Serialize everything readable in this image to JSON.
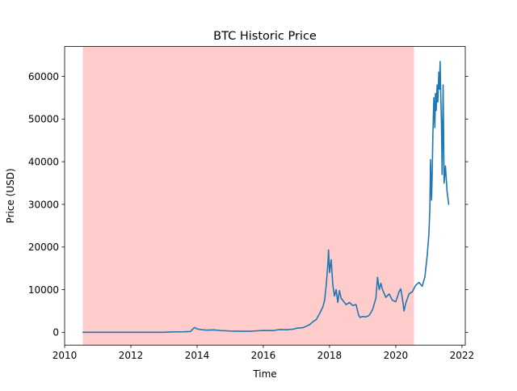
{
  "chart_data": {
    "type": "line",
    "title": "BTC Historic Price",
    "xlabel": "Time",
    "ylabel": "Price (USD)",
    "xlim": [
      2010.0,
      2022.1
    ],
    "ylim": [
      -3000,
      67000
    ],
    "x_ticks": [
      2010,
      2012,
      2014,
      2016,
      2018,
      2020,
      2022
    ],
    "x_tick_labels": [
      "2010",
      "2012",
      "2014",
      "2016",
      "2018",
      "2020",
      "2022"
    ],
    "y_ticks": [
      0,
      10000,
      20000,
      30000,
      40000,
      50000,
      60000
    ],
    "y_tick_labels": [
      "0",
      "10000",
      "20000",
      "30000",
      "40000",
      "50000",
      "60000"
    ],
    "grid": false,
    "shaded_region": {
      "x_start": 2010.55,
      "x_end": 2020.55,
      "color": "#ffcccc"
    },
    "series": [
      {
        "color": "#1f77b4",
        "x": [
          2010.55,
          2011.0,
          2011.5,
          2012.0,
          2012.5,
          2013.0,
          2013.3,
          2013.6,
          2013.8,
          2013.92,
          2014.0,
          2014.15,
          2014.3,
          2014.5,
          2014.7,
          2014.9,
          2015.0,
          2015.3,
          2015.6,
          2015.9,
          2016.0,
          2016.3,
          2016.5,
          2016.7,
          2016.9,
          2017.0,
          2017.2,
          2017.4,
          2017.5,
          2017.6,
          2017.7,
          2017.8,
          2017.85,
          2017.9,
          2017.95,
          2017.97,
          2018.0,
          2018.05,
          2018.1,
          2018.15,
          2018.2,
          2018.25,
          2018.3,
          2018.35,
          2018.4,
          2018.5,
          2018.6,
          2018.7,
          2018.8,
          2018.88,
          2018.92,
          2019.0,
          2019.1,
          2019.2,
          2019.3,
          2019.4,
          2019.45,
          2019.5,
          2019.55,
          2019.6,
          2019.7,
          2019.8,
          2019.9,
          2020.0,
          2020.1,
          2020.15,
          2020.2,
          2020.25,
          2020.3,
          2020.4,
          2020.5,
          2020.6,
          2020.7,
          2020.8,
          2020.88,
          2020.95,
          2021.0,
          2021.03,
          2021.05,
          2021.08,
          2021.1,
          2021.12,
          2021.15,
          2021.18,
          2021.2,
          2021.22,
          2021.25,
          2021.27,
          2021.3,
          2021.32,
          2021.34,
          2021.36,
          2021.38,
          2021.4,
          2021.43,
          2021.46,
          2021.5,
          2021.55,
          2021.6
        ],
        "values": [
          0,
          1,
          10,
          5,
          7,
          15,
          100,
          120,
          200,
          1150,
          800,
          600,
          500,
          580,
          420,
          350,
          300,
          240,
          250,
          400,
          430,
          420,
          650,
          600,
          730,
          950,
          1100,
          1800,
          2500,
          3000,
          4400,
          6000,
          7500,
          11000,
          16000,
          19300,
          14000,
          17000,
          11000,
          8500,
          10000,
          7000,
          9800,
          8000,
          7500,
          6500,
          7000,
          6300,
          6500,
          4000,
          3500,
          3700,
          3600,
          4000,
          5300,
          8000,
          12900,
          10000,
          11500,
          10000,
          8200,
          9000,
          7500,
          7200,
          9500,
          10200,
          8000,
          5000,
          6800,
          9000,
          9500,
          11000,
          11700,
          10800,
          13000,
          18000,
          23000,
          29000,
          40500,
          31000,
          37000,
          46000,
          55000,
          48000,
          56000,
          52000,
          58000,
          54000,
          61000,
          57000,
          63500,
          55000,
          49000,
          37000,
          58000,
          35000,
          39000,
          33000,
          30000
        ]
      }
    ]
  }
}
